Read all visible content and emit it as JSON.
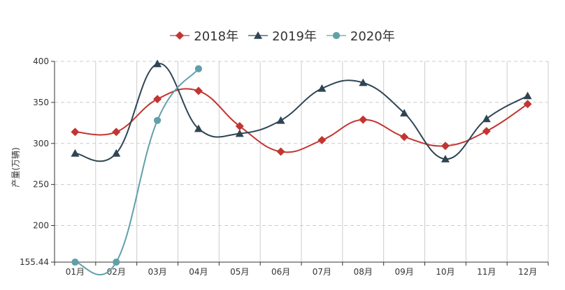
{
  "chart_data": {
    "type": "line",
    "title": "",
    "xlabel": "",
    "ylabel": "产量(万辆)",
    "categories": [
      "01月",
      "02月",
      "03月",
      "04月",
      "05月",
      "06月",
      "07月",
      "08月",
      "09月",
      "10月",
      "11月",
      "12月"
    ],
    "yticks": [
      "155.44",
      "200",
      "250",
      "300",
      "350",
      "400"
    ],
    "ylim": [
      155.44,
      400
    ],
    "grid": {
      "horizontal": "dashed",
      "vertical": "solid"
    },
    "legend_position": "top",
    "smooth": true,
    "series": [
      {
        "name": "2018年",
        "color": "#c23531",
        "marker": "diamond",
        "values": [
          314,
          314,
          354,
          364,
          321,
          290,
          304,
          329,
          308,
          297,
          315,
          348
        ]
      },
      {
        "name": "2019年",
        "color": "#2f4554",
        "marker": "triangle",
        "values": [
          288,
          288,
          397,
          318,
          312,
          328,
          367,
          374,
          337,
          281,
          330,
          358
        ]
      },
      {
        "name": "2020年",
        "color": "#61a0a8",
        "marker": "circle",
        "values": [
          155.44,
          155.44,
          328,
          391
        ]
      }
    ]
  }
}
